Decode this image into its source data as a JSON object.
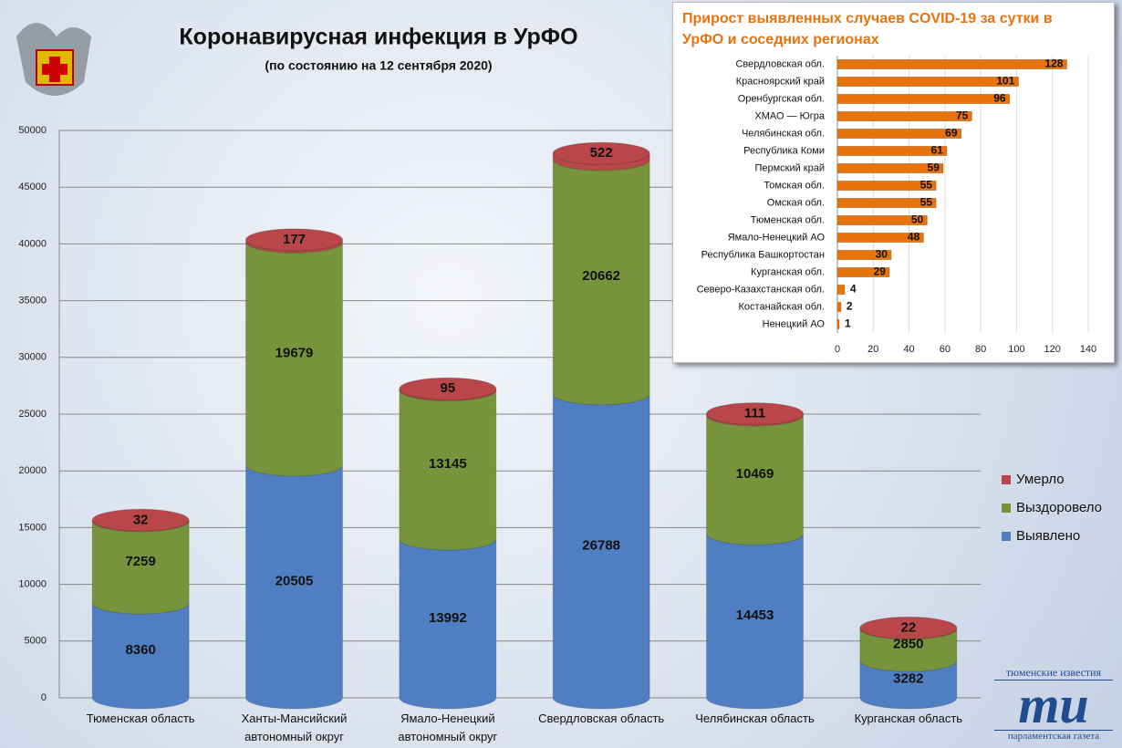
{
  "chart_data": [
    {
      "type": "cylinder-stacked-bar",
      "title": "Коронавирусная инфекция в УрФО",
      "subtitle": "(по состоянию на 12 сентября 2020)",
      "categories": [
        "Тюменская область",
        "Ханты-Мансийский автономный округ",
        "Ямало-Ненецкий автономный округ",
        "Свердловская область",
        "Челябинская область",
        "Курганская область"
      ],
      "series": [
        {
          "name": "Выявлено",
          "color": "#4f7fc2",
          "values": [
            8360,
            20505,
            13992,
            26788,
            14453,
            3282
          ]
        },
        {
          "name": "Выздоровело",
          "color": "#77933c",
          "values": [
            7259,
            19679,
            13145,
            20662,
            10469,
            2850
          ]
        },
        {
          "name": "Умерло",
          "color": "#b9474a",
          "values": [
            32,
            177,
            95,
            522,
            111,
            22
          ]
        }
      ],
      "ylim": [
        0,
        50000
      ],
      "yticks": [
        0,
        5000,
        10000,
        15000,
        20000,
        25000,
        30000,
        35000,
        40000,
        45000,
        50000
      ],
      "grid": true,
      "legend": "right"
    },
    {
      "type": "hbar",
      "title": "Прирост выявленных случаев COVID-19 за сутки в УрФО и соседних регионах",
      "categories": [
        "Свердловская обл.",
        "Красноярский край",
        "Оренбургская обл.",
        "ХМАО — Югра",
        "Челябинская обл.",
        "Республика Коми",
        "Пермский край",
        "Томская обл.",
        "Омская обл.",
        "Тюменская обл.",
        "Ямало-Ненецкий АО",
        "Республика Башкортостан",
        "Курганская обл.",
        "Северо-Казахстанская обл.",
        "Костанайская обл.",
        "Ненецкий АО"
      ],
      "values": [
        128,
        101,
        96,
        75,
        69,
        61,
        59,
        55,
        55,
        50,
        48,
        30,
        29,
        4,
        2,
        1
      ],
      "color": "#e8730c",
      "xlim": [
        0,
        140
      ],
      "xticks": [
        0,
        20,
        40,
        60,
        80,
        100,
        120,
        140
      ],
      "grid": true
    }
  ],
  "logo": {
    "top": "тюменские известия",
    "mark": "ти",
    "bottom": "парламентская газета"
  }
}
